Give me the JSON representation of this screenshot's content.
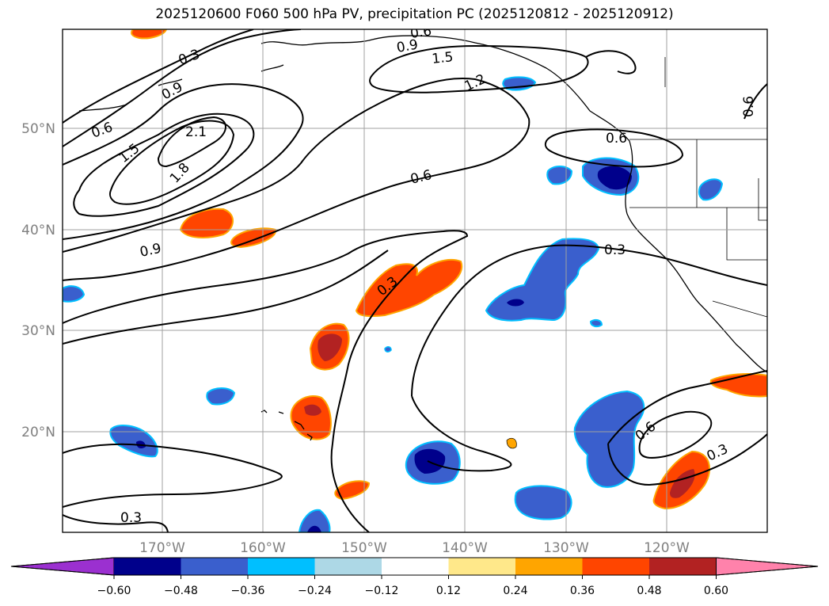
{
  "title": "2025120600 F060 500 hPa PV, precipitation PC (2025120812 - 2025120912)",
  "latitude_labels": [
    "50°N",
    "40°N",
    "30°N",
    "20°N"
  ],
  "longitude_labels": [
    "170°W",
    "160°W",
    "150°W",
    "140°W",
    "130°W",
    "120°W"
  ],
  "contour_labels": [
    "0.6",
    "0.9",
    "1.5",
    "1.2",
    "0.3",
    "0.9",
    "0.6",
    "2.1",
    "1.5",
    "1.8",
    "0.6",
    "0.9",
    "0.3",
    "0.3",
    "0.6",
    "0.6",
    "0.3",
    "0.3",
    "0.6"
  ],
  "colorbar": {
    "tick_labels": [
      "−0.60",
      "−0.48",
      "−0.36",
      "−0.24",
      "−0.12",
      "0.12",
      "0.24",
      "0.36",
      "0.48",
      "0.60"
    ],
    "colors": [
      "#9b30d0",
      "#00008b",
      "#3a5fcd",
      "#00bfff",
      "#add8e6",
      "#ffffff",
      "#ffe88a",
      "#ffa500",
      "#ff4500",
      "#b22222",
      "#ff82ab"
    ]
  }
}
